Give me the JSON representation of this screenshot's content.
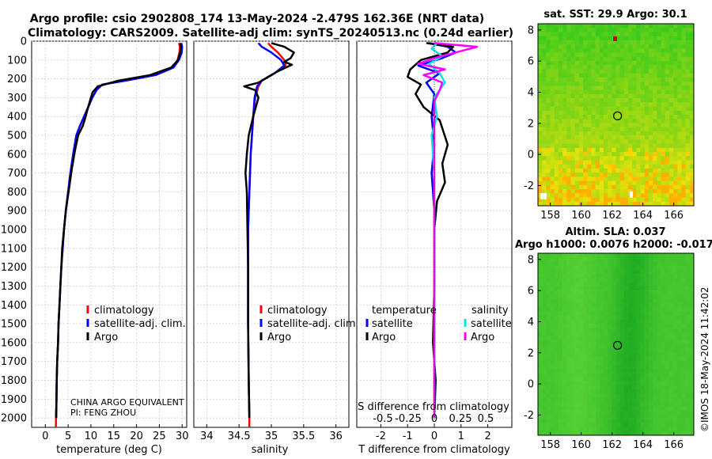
{
  "header": {
    "line1": "Argo profile: csio 2902808_174 13-May-2024 -2.479S 162.36E (NRT data)",
    "line2": "Climatology: CARS2009. Satellite-adj clim: synTS_20240513.nc (0.24d earlier)"
  },
  "credit": "©IMOS 18-May-2024 11:42:02",
  "colors": {
    "climatology": "#ff0000",
    "satellite_adj": "#0000ff",
    "argo": "#000000",
    "s_satellite": "#00e5ee",
    "s_argo": "#ff00ff"
  },
  "chart_data": [
    {
      "id": "temperature",
      "type": "line",
      "xlabel": "temperature (deg C)",
      "xlim": [
        -3,
        31
      ],
      "xticks": [
        0,
        5,
        10,
        15,
        20,
        25,
        30
      ],
      "ylim": [
        2050,
        0
      ],
      "yticks": [
        0,
        100,
        200,
        300,
        400,
        500,
        600,
        700,
        800,
        900,
        1000,
        1100,
        1200,
        1300,
        1400,
        1500,
        1600,
        1700,
        1800,
        1900,
        2000
      ],
      "legend": [
        "climatology",
        "satellite-adj. clim.",
        "Argo"
      ],
      "note": [
        "CHINA ARGO EQUIVALENT",
        "PI: FENG ZHOU"
      ],
      "series": [
        {
          "name": "climatology",
          "color": "#ff0000",
          "points": [
            [
              29.3,
              10
            ],
            [
              29.5,
              30
            ],
            [
              29.4,
              60
            ],
            [
              29.0,
              100
            ],
            [
              28.0,
              140
            ],
            [
              24.0,
              180
            ],
            [
              17.0,
              210
            ],
            [
              12.5,
              230
            ],
            [
              11.2,
              260
            ],
            [
              10.3,
              300
            ],
            [
              9.4,
              350
            ],
            [
              8.5,
              400
            ],
            [
              7.6,
              450
            ],
            [
              6.8,
              500
            ],
            [
              6.1,
              600
            ],
            [
              5.5,
              700
            ],
            [
              5.0,
              800
            ],
            [
              4.5,
              900
            ],
            [
              4.1,
              1000
            ],
            [
              3.8,
              1100
            ],
            [
              3.5,
              1200
            ],
            [
              3.3,
              1300
            ],
            [
              3.1,
              1400
            ],
            [
              2.9,
              1500
            ],
            [
              2.8,
              1600
            ],
            [
              2.6,
              1700
            ],
            [
              2.5,
              1800
            ],
            [
              2.45,
              1900
            ],
            [
              2.35,
              2000
            ],
            [
              2.3,
              2050
            ]
          ]
        },
        {
          "name": "satellite-adj. clim.",
          "color": "#0000ff",
          "points": [
            [
              29.8,
              10
            ],
            [
              30.0,
              30
            ],
            [
              29.9,
              60
            ],
            [
              29.3,
              100
            ],
            [
              28.1,
              140
            ],
            [
              24.2,
              180
            ],
            [
              17.5,
              210
            ],
            [
              12.5,
              230
            ],
            [
              11.2,
              260
            ],
            [
              10.3,
              300
            ],
            [
              9.4,
              350
            ],
            [
              8.5,
              400
            ],
            [
              7.6,
              450
            ],
            [
              6.8,
              500
            ],
            [
              6.1,
              600
            ],
            [
              5.5,
              700
            ],
            [
              5.0,
              800
            ],
            [
              4.5,
              900
            ],
            [
              4.1,
              1000
            ],
            [
              3.8,
              1100
            ],
            [
              3.5,
              1200
            ],
            [
              3.3,
              1300
            ],
            [
              3.1,
              1400
            ],
            [
              2.9,
              1500
            ],
            [
              2.8,
              1600
            ],
            [
              2.6,
              1700
            ],
            [
              2.5,
              1800
            ],
            [
              2.45,
              1900
            ],
            [
              2.35,
              2000
            ]
          ]
        },
        {
          "name": "Argo",
          "color": "#000000",
          "points": [
            [
              29.6,
              10
            ],
            [
              29.7,
              30
            ],
            [
              29.6,
              60
            ],
            [
              29.1,
              100
            ],
            [
              27.6,
              140
            ],
            [
              23.0,
              180
            ],
            [
              16.0,
              210
            ],
            [
              11.5,
              240
            ],
            [
              10.4,
              270
            ],
            [
              10.0,
              300
            ],
            [
              9.4,
              350
            ],
            [
              8.6,
              420
            ],
            [
              8.2,
              450
            ],
            [
              7.2,
              500
            ],
            [
              6.5,
              580
            ],
            [
              5.8,
              680
            ],
            [
              5.1,
              800
            ],
            [
              4.5,
              900
            ],
            [
              4.1,
              1000
            ],
            [
              3.7,
              1100
            ],
            [
              3.5,
              1200
            ],
            [
              3.3,
              1300
            ],
            [
              3.1,
              1400
            ],
            [
              2.9,
              1500
            ],
            [
              2.8,
              1600
            ],
            [
              2.6,
              1700
            ],
            [
              2.5,
              1800
            ],
            [
              2.45,
              1900
            ],
            [
              2.4,
              2000
            ]
          ]
        }
      ]
    },
    {
      "id": "salinity",
      "type": "line",
      "xlabel": "salinity",
      "xlim": [
        33.8,
        36.2
      ],
      "xticks": [
        34,
        34.5,
        35,
        35.5,
        36
      ],
      "ylim": [
        2050,
        0
      ],
      "legend": [
        "climatology",
        "satellite-adj. clim.",
        "Argo"
      ],
      "series": [
        {
          "name": "climatology",
          "color": "#ff0000",
          "points": [
            [
              34.95,
              10
            ],
            [
              35.0,
              30
            ],
            [
              35.1,
              60
            ],
            [
              35.2,
              100
            ],
            [
              35.22,
              130
            ],
            [
              35.05,
              170
            ],
            [
              34.85,
              210
            ],
            [
              34.8,
              240
            ],
            [
              34.75,
              300
            ],
            [
              34.72,
              400
            ],
            [
              34.7,
              500
            ],
            [
              34.68,
              600
            ],
            [
              34.66,
              800
            ],
            [
              34.64,
              1000
            ],
            [
              34.64,
              1200
            ],
            [
              34.64,
              1500
            ],
            [
              34.65,
              1800
            ],
            [
              34.66,
              2000
            ],
            [
              34.66,
              2050
            ]
          ]
        },
        {
          "name": "satellite-adj. clim.",
          "color": "#0000ff",
          "points": [
            [
              34.8,
              10
            ],
            [
              34.85,
              30
            ],
            [
              35.0,
              60
            ],
            [
              35.15,
              100
            ],
            [
              35.2,
              130
            ],
            [
              35.05,
              170
            ],
            [
              34.85,
              210
            ],
            [
              34.78,
              240
            ],
            [
              34.74,
              300
            ],
            [
              34.72,
              400
            ],
            [
              34.7,
              500
            ],
            [
              34.68,
              600
            ],
            [
              34.66,
              800
            ],
            [
              34.64,
              1000
            ],
            [
              34.64,
              1200
            ],
            [
              34.64,
              1500
            ],
            [
              34.65,
              1800
            ],
            [
              34.66,
              2000
            ]
          ]
        },
        {
          "name": "Argo",
          "color": "#000000",
          "points": [
            [
              35.0,
              10
            ],
            [
              35.2,
              30
            ],
            [
              35.35,
              60
            ],
            [
              35.3,
              90
            ],
            [
              35.2,
              110
            ],
            [
              35.32,
              125
            ],
            [
              35.1,
              160
            ],
            [
              34.95,
              190
            ],
            [
              34.8,
              220
            ],
            [
              34.58,
              240
            ],
            [
              34.75,
              260
            ],
            [
              34.8,
              300
            ],
            [
              34.72,
              400
            ],
            [
              34.65,
              500
            ],
            [
              34.62,
              600
            ],
            [
              34.6,
              700
            ],
            [
              34.62,
              800
            ],
            [
              34.63,
              1000
            ],
            [
              34.64,
              1200
            ],
            [
              34.64,
              1500
            ],
            [
              34.65,
              1800
            ],
            [
              34.66,
              2000
            ]
          ]
        }
      ]
    },
    {
      "id": "difference",
      "type": "line",
      "xlabel": "T difference from climatology",
      "top_label": "S difference from climatology",
      "xlim": [
        -2.9,
        2.9
      ],
      "xticks": [
        -2,
        -1,
        0,
        1,
        2
      ],
      "s_tick_labels": [
        "-0.5",
        "-0.25",
        "0",
        "0.25",
        "0.5"
      ],
      "ylim": [
        2050,
        0
      ],
      "legend": {
        "temperature_title": "temperature",
        "salinity_title": "salinity",
        "entries": [
          "satellite",
          "Argo",
          "satellite",
          "Argo"
        ]
      },
      "series": [
        {
          "name": "T satellite",
          "color": "#0000ff",
          "points": [
            [
              -0.2,
              10
            ],
            [
              0.5,
              30
            ],
            [
              0.8,
              60
            ],
            [
              0.3,
              90
            ],
            [
              -0.6,
              130
            ],
            [
              0.2,
              170
            ],
            [
              -0.3,
              220
            ],
            [
              0.0,
              280
            ],
            [
              -0.1,
              400
            ],
            [
              0.0,
              550
            ],
            [
              -0.1,
              700
            ],
            [
              0.0,
              900
            ],
            [
              0.0,
              1200
            ],
            [
              0.0,
              1600
            ],
            [
              0.0,
              2000
            ]
          ]
        },
        {
          "name": "T Argo",
          "color": "#000000",
          "points": [
            [
              -0.3,
              10
            ],
            [
              0.7,
              30
            ],
            [
              0.5,
              60
            ],
            [
              -0.5,
              100
            ],
            [
              -0.9,
              150
            ],
            [
              -1.0,
              190
            ],
            [
              -0.5,
              230
            ],
            [
              -0.7,
              280
            ],
            [
              -0.4,
              350
            ],
            [
              0.2,
              420
            ],
            [
              0.5,
              550
            ],
            [
              0.3,
              650
            ],
            [
              0.4,
              750
            ],
            [
              0.1,
              850
            ],
            [
              0.0,
              1000
            ],
            [
              0.0,
              1300
            ],
            [
              -0.05,
              1600
            ],
            [
              0.05,
              1800
            ],
            [
              0.0,
              2000
            ]
          ]
        },
        {
          "name": "S satellite",
          "color": "#00e5ee",
          "points": [
            [
              0.1,
              10
            ],
            [
              -0.1,
              40
            ],
            [
              0.3,
              80
            ],
            [
              -0.2,
              120
            ],
            [
              0.2,
              170
            ],
            [
              0.4,
              220
            ],
            [
              0.0,
              300
            ],
            [
              0.1,
              400
            ],
            [
              -0.1,
              500
            ],
            [
              0.0,
              700
            ],
            [
              0.0,
              1000
            ],
            [
              0.0,
              1500
            ],
            [
              0.0,
              2000
            ]
          ]
        },
        {
          "name": "S Argo",
          "color": "#ff00ff",
          "points": [
            [
              0.0,
              10
            ],
            [
              1.6,
              30
            ],
            [
              0.8,
              60
            ],
            [
              0.0,
              90
            ],
            [
              -0.6,
              120
            ],
            [
              0.4,
              150
            ],
            [
              -0.4,
              180
            ],
            [
              0.3,
              220
            ],
            [
              0.2,
              260
            ],
            [
              0.0,
              320
            ],
            [
              0.0,
              500
            ],
            [
              0.0,
              800
            ],
            [
              0.0,
              1200
            ],
            [
              0.0,
              1600
            ],
            [
              0.0,
              2000
            ]
          ]
        }
      ]
    },
    {
      "id": "sst_map",
      "type": "heatmap",
      "title": "sat. SST: 29.9 Argo: 30.1",
      "xticks": [
        158,
        160,
        162,
        164,
        166
      ],
      "yticks": [
        -2,
        0,
        2,
        4,
        6,
        8
      ],
      "xlim": [
        157.2,
        167.3
      ],
      "ylim": [
        -3.3,
        8.4
      ],
      "marker": [
        162.36,
        2.479
      ]
    },
    {
      "id": "sla_map",
      "type": "heatmap",
      "title1": "Altim. SLA: 0.037",
      "title2": "Argo h1000: 0.0076 h2000: -0.017",
      "xticks": [
        158,
        160,
        162,
        164,
        166
      ],
      "yticks": [
        -2,
        0,
        2,
        4,
        6,
        8
      ],
      "xlim": [
        157.2,
        167.3
      ],
      "ylim": [
        -3.3,
        8.4
      ],
      "marker": [
        162.36,
        2.479
      ]
    }
  ]
}
